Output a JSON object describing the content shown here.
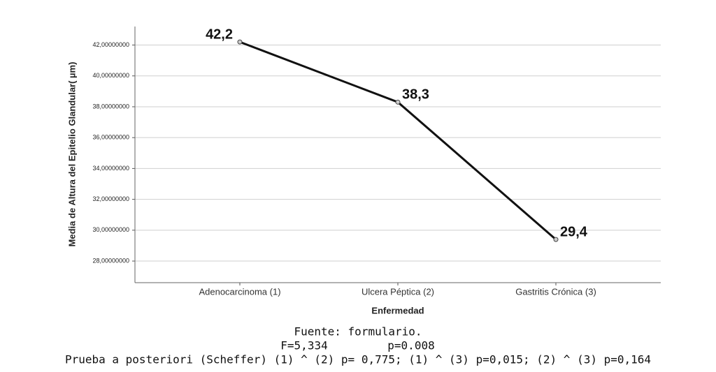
{
  "chart_data": {
    "type": "line",
    "y_label": "Media de Altura del Epitelio Glandular( µm)",
    "x_label": "Enfermedad",
    "categories": [
      "Adenocarcinoma (1)",
      "Ulcera Péptica (2)",
      "Gastritis Crónica (3)"
    ],
    "series": [
      {
        "name": "Media",
        "color": "#111111",
        "values": [
          42.2,
          38.3,
          29.4
        ],
        "value_labels": [
          "42,2",
          "38,3",
          "29,4"
        ]
      }
    ],
    "ylim": [
      26.6,
      43.2
    ],
    "yticks": [
      {
        "value": 28,
        "label": "28,00000000"
      },
      {
        "value": 30,
        "label": "30,00000000"
      },
      {
        "value": 32,
        "label": "32,00000000"
      },
      {
        "value": 34,
        "label": "34,00000000"
      },
      {
        "value": 36,
        "label": "36,00000000"
      },
      {
        "value": 38,
        "label": "38,00000000"
      },
      {
        "value": 40,
        "label": "40,00000000"
      },
      {
        "value": 42,
        "label": "42,00000000"
      }
    ],
    "grid": true,
    "source": "Fuente: formulario.",
    "f_stat": "F=5,334",
    "p_value": "p=0.008",
    "posthoc": "Prueba a posteriori (Scheffer) (1) ^ (2) p= 0,775; (1) ^ (3) p=0,015; (2) ^ (3) p=0,164"
  }
}
